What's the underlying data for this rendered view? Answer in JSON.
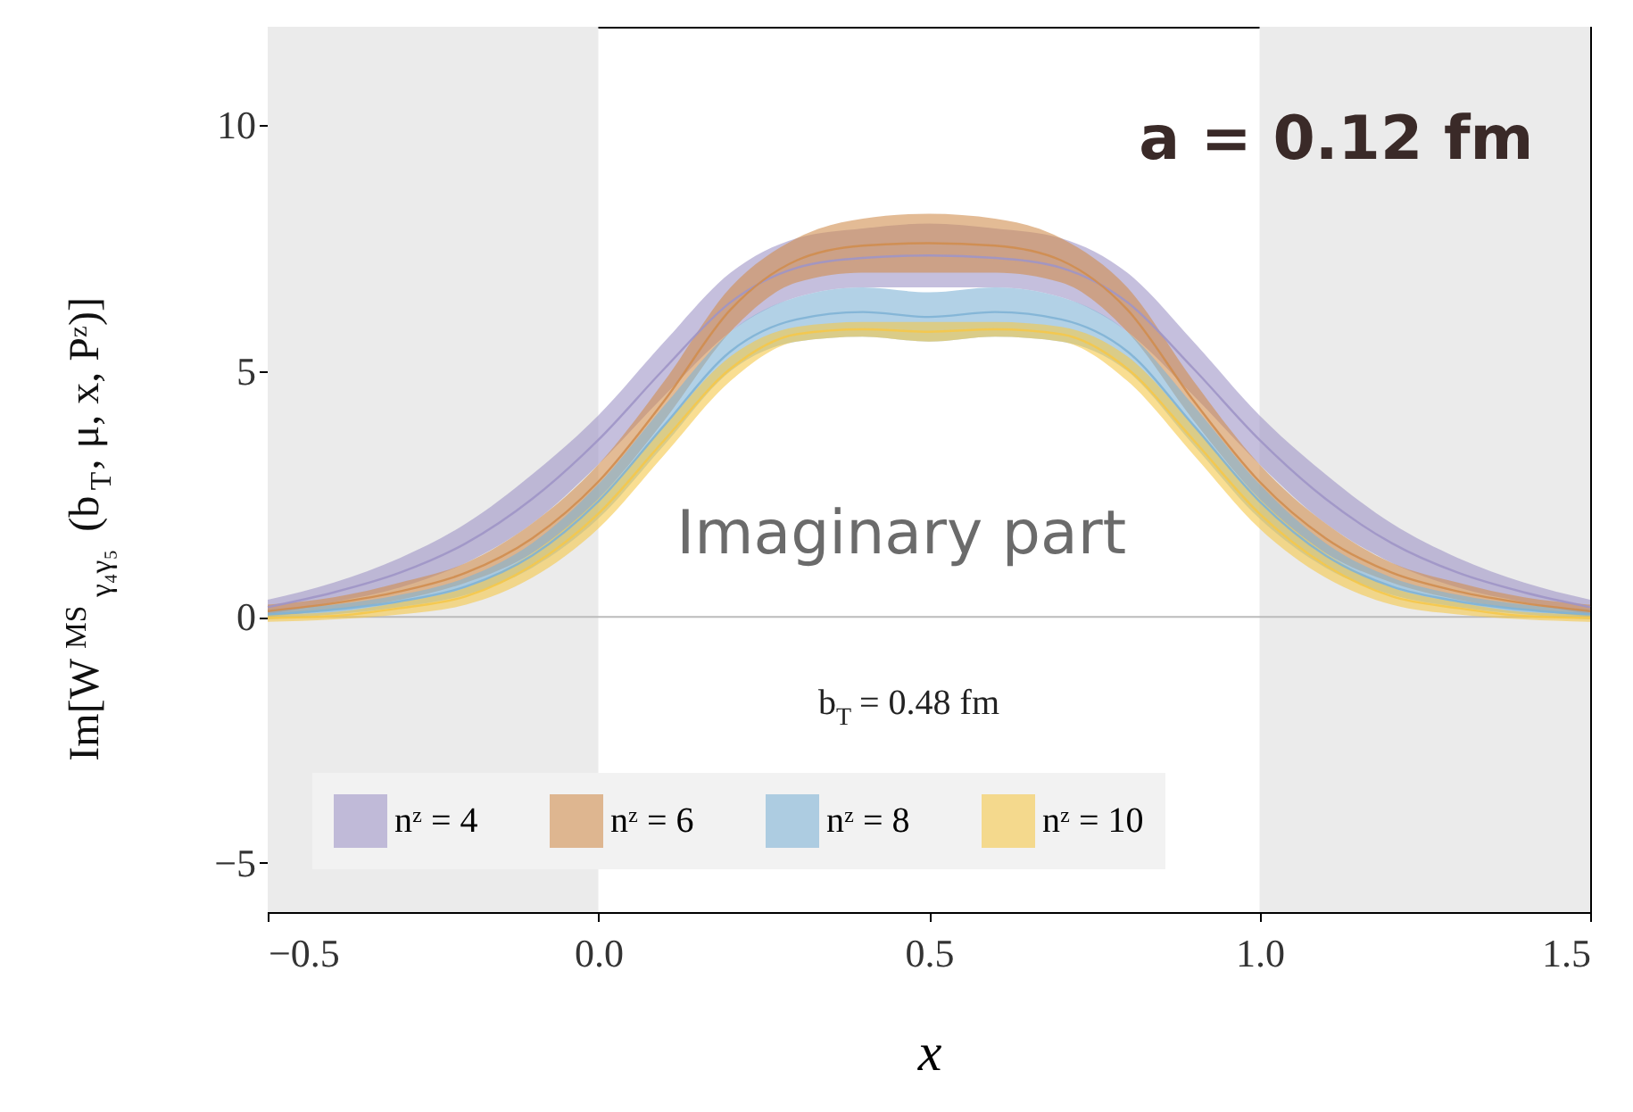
{
  "chart_data": {
    "type": "line",
    "xlabel": "x",
    "ylabel": "Im[W$^{MS}$$_{γ₄γ₅}$(b$_{T}$, μ, x, Pᶻ)]",
    "x": [
      -0.5,
      -0.4,
      -0.3,
      -0.2,
      -0.1,
      0.0,
      0.1,
      0.2,
      0.3,
      0.4,
      0.5,
      0.6,
      0.7,
      0.8,
      0.9,
      1.0,
      1.1,
      1.2,
      1.3,
      1.4,
      1.5
    ],
    "series": [
      {
        "name": "nᶻ = 4",
        "color": "#9f95c6",
        "values": [
          0.2,
          0.5,
          0.9,
          1.5,
          2.4,
          3.6,
          5.05,
          6.4,
          7.1,
          7.3,
          7.35,
          7.3,
          7.1,
          6.4,
          5.05,
          3.6,
          2.4,
          1.5,
          0.9,
          0.5,
          0.2
        ],
        "lower": [
          0.05,
          0.3,
          0.6,
          1.1,
          1.9,
          3.1,
          4.5,
          5.8,
          6.5,
          6.7,
          6.7,
          6.7,
          6.5,
          5.8,
          4.5,
          3.1,
          1.9,
          1.1,
          0.6,
          0.3,
          0.05
        ],
        "upper": [
          0.35,
          0.7,
          1.2,
          1.9,
          2.9,
          4.1,
          5.6,
          7.0,
          7.7,
          7.9,
          8.0,
          7.9,
          7.7,
          7.0,
          5.6,
          4.1,
          2.9,
          1.9,
          1.2,
          0.7,
          0.35
        ]
      },
      {
        "name": "nᶻ = 6",
        "color": "#d08d4f",
        "values": [
          0.12,
          0.28,
          0.52,
          0.9,
          1.6,
          2.75,
          4.4,
          6.25,
          7.25,
          7.55,
          7.6,
          7.55,
          7.25,
          6.25,
          4.4,
          2.75,
          1.6,
          0.9,
          0.52,
          0.28,
          0.12
        ],
        "lower": [
          0.0,
          0.15,
          0.35,
          0.7,
          1.3,
          2.4,
          4.0,
          5.8,
          6.8,
          7.0,
          7.0,
          7.0,
          6.8,
          5.8,
          4.0,
          2.4,
          1.3,
          0.7,
          0.35,
          0.15,
          0.0
        ],
        "upper": [
          0.25,
          0.4,
          0.7,
          1.1,
          1.9,
          3.1,
          4.8,
          6.7,
          7.7,
          8.1,
          8.2,
          8.1,
          7.7,
          6.7,
          4.8,
          3.1,
          1.9,
          1.1,
          0.7,
          0.4,
          0.25
        ]
      },
      {
        "name": "nᶻ = 8",
        "color": "#7fb3d5",
        "values": [
          0.05,
          0.15,
          0.32,
          0.62,
          1.25,
          2.35,
          3.9,
          5.4,
          6.05,
          6.2,
          6.1,
          6.2,
          6.05,
          5.4,
          3.9,
          2.35,
          1.25,
          0.62,
          0.32,
          0.15,
          0.05
        ],
        "lower": [
          -0.05,
          0.05,
          0.2,
          0.45,
          1.0,
          2.0,
          3.5,
          5.0,
          5.6,
          5.7,
          5.6,
          5.7,
          5.6,
          5.0,
          3.5,
          2.0,
          1.0,
          0.45,
          0.2,
          0.05,
          -0.05
        ],
        "upper": [
          0.15,
          0.25,
          0.45,
          0.8,
          1.5,
          2.7,
          4.3,
          5.8,
          6.5,
          6.7,
          6.6,
          6.7,
          6.5,
          5.8,
          4.3,
          2.7,
          1.5,
          0.8,
          0.45,
          0.25,
          0.15
        ]
      },
      {
        "name": "nᶻ = 10",
        "color": "#f5c84a",
        "values": [
          -0.02,
          0.02,
          0.18,
          0.42,
          1.05,
          2.1,
          3.6,
          5.05,
          5.75,
          5.85,
          5.8,
          5.85,
          5.75,
          5.05,
          3.6,
          2.1,
          1.05,
          0.42,
          0.18,
          0.02,
          -0.02
        ],
        "lower": [
          -0.1,
          -0.05,
          0.05,
          0.25,
          0.8,
          1.8,
          3.3,
          4.8,
          5.6,
          5.7,
          5.6,
          5.7,
          5.6,
          4.8,
          3.3,
          1.8,
          0.8,
          0.25,
          0.05,
          -0.05,
          -0.1
        ],
        "upper": [
          0.05,
          0.1,
          0.3,
          0.6,
          1.3,
          2.4,
          3.9,
          5.3,
          5.9,
          6.0,
          6.0,
          6.0,
          5.9,
          5.3,
          3.9,
          2.4,
          1.3,
          0.6,
          0.3,
          0.1,
          0.05
        ]
      }
    ],
    "xlim": [
      -0.5,
      1.5
    ],
    "xticks": [
      -0.5,
      {
        "value": 0,
        "label": "0.0"
      },
      0.5,
      {
        "value": 1,
        "label": "1.0"
      },
      1.5
    ],
    "ylim": [
      -6,
      12
    ],
    "yticks": [
      -5,
      0,
      5,
      10
    ],
    "bands": [
      {
        "axis": "x",
        "from": -0.5,
        "to": 0,
        "color": "#ebebeb"
      },
      {
        "axis": "x",
        "from": 1,
        "to": 1.5,
        "color": "#ebebeb"
      }
    ],
    "ref_lines": [
      {
        "axis": "y",
        "value": 0,
        "color": "#bbbbbb"
      }
    ],
    "annotations": [
      "a = 0.12 fm",
      "Imaginary part",
      "b$_{T}$ = 0.48 fm"
    ],
    "legend": "bottom",
    "grid": false
  }
}
